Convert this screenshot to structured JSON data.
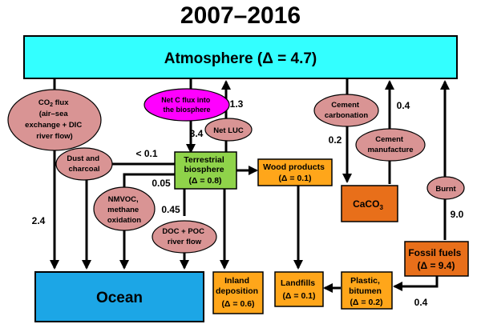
{
  "title": "2007–2016",
  "colors": {
    "atmosphere": "#33ffff",
    "ocean": "#1ca6e6",
    "terrestrial": "#8fd34a",
    "product": "#ffa61a",
    "fossil": "#e86f1a",
    "process": "#d99494",
    "net_biosphere": "#ff00ff"
  },
  "boxes": {
    "atmosphere": "Atmosphere (Δ = 4.7)",
    "ocean": "Ocean",
    "terrestrial": [
      "Terrestrial",
      "biosphere",
      "(Δ = 0.8)"
    ],
    "wood": [
      "Wood products",
      "(Δ = 0.1)"
    ],
    "caco3_main": "CaCO",
    "caco3_sub": "3",
    "fossil": [
      "Fossil fuels",
      "(Δ = 9.4)"
    ],
    "inland": [
      "Inland",
      "deposition",
      "(Δ = 0.6)"
    ],
    "landfills": [
      "Landfills",
      "(Δ = 0.1)"
    ],
    "plastic": [
      "Plastic,",
      "bitumen",
      "(Δ = 0.2)"
    ]
  },
  "processes": {
    "co2_flux": {
      "l1a": "CO",
      "l1sub": "2",
      "l1b": " flux",
      "l2": "(air–sea",
      "l3": "exchange + DIC",
      "l4": "river flow)"
    },
    "net_c": [
      "Net C flux into",
      "the biosphere"
    ],
    "net_luc": "Net LUC",
    "cement_carb": [
      "Cement",
      "carbonation"
    ],
    "cement_manu": [
      "Cement",
      "manufacture"
    ],
    "dust": [
      "Dust and",
      "charcoal"
    ],
    "nmvoc": [
      "NMVOC,",
      "methane",
      "oxidation"
    ],
    "doc": [
      "DOC + POC",
      "river flow"
    ],
    "burnt": "Burnt"
  },
  "fluxes": {
    "co2_ocean": "2.4",
    "luc": "1.3",
    "net_c": "3.4",
    "dust": "< 0.1",
    "nmvoc": "0.05",
    "doc": "0.45",
    "carbonation": "0.2",
    "manufacture": "0.4",
    "burnt": "9.0",
    "plastic": "0.4"
  }
}
